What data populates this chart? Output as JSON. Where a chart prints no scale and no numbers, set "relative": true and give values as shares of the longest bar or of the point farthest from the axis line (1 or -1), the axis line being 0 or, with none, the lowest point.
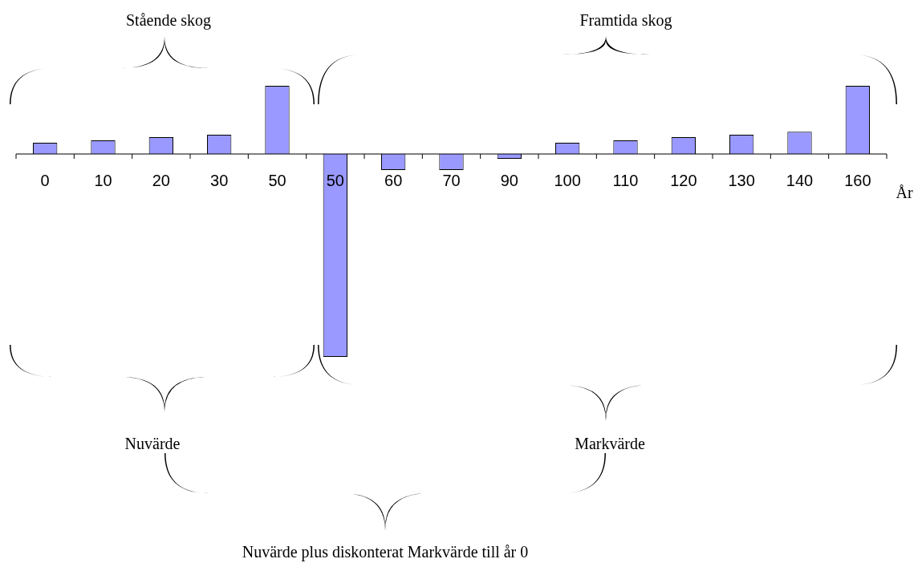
{
  "chart_data": {
    "type": "bar",
    "relative": true,
    "xlabel": "År",
    "categories": [
      "0",
      "10",
      "20",
      "30",
      "50",
      "50",
      "60",
      "70",
      "90",
      "100",
      "110",
      "120",
      "130",
      "140",
      "160"
    ],
    "values": [
      0.055,
      0.067,
      0.083,
      0.095,
      0.336,
      -1,
      -0.079,
      -0.079,
      -0.024,
      0.055,
      0.067,
      0.083,
      0.095,
      0.11,
      0.336
    ],
    "color": "#9999ff",
    "annotations": [
      "Stående skog",
      "Framtida skog",
      "Nuvärde",
      "Markvärde",
      "Nuvärde plus diskonterat Markvärde till år 0"
    ]
  }
}
